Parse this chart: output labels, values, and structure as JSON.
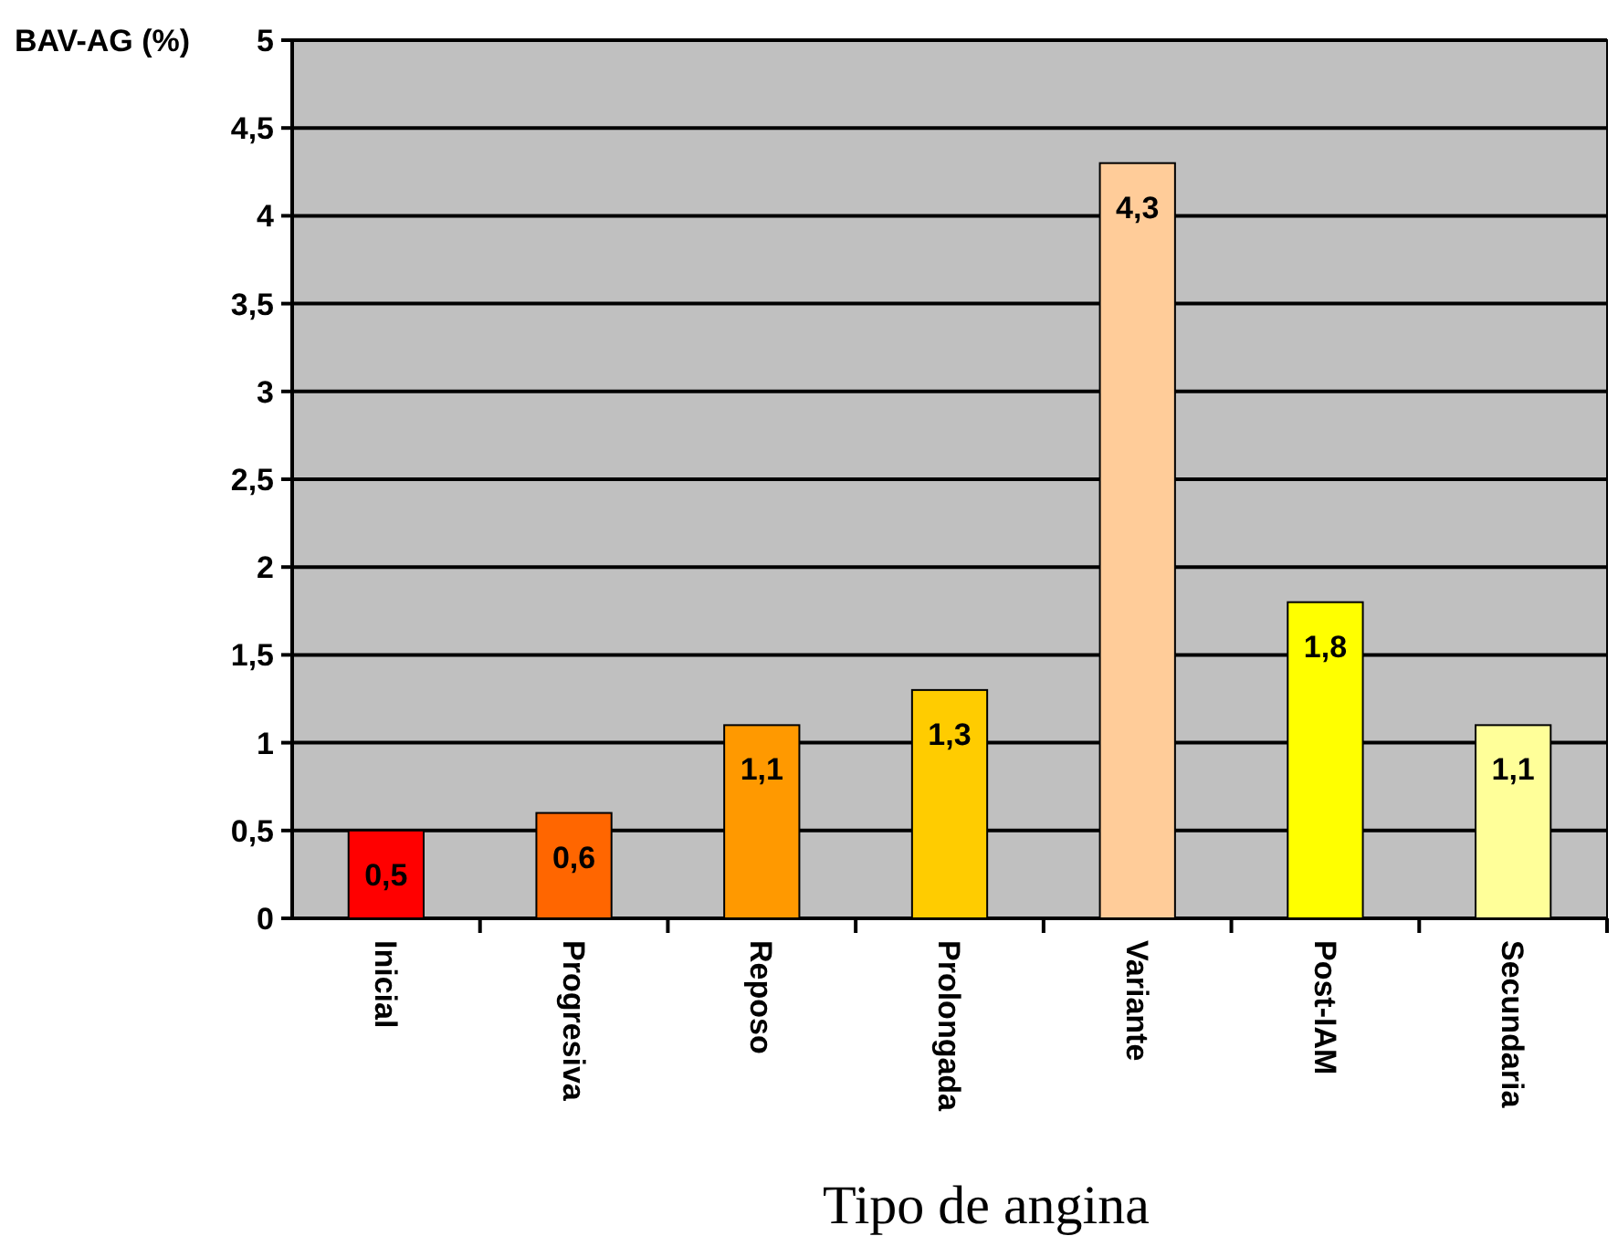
{
  "chart_data": {
    "type": "bar",
    "xlabel": "Tipo de angina",
    "ylabel": "BAV-AG (%)",
    "categories": [
      "Inicial",
      "Progresiva",
      "Reposo",
      "Prolongada",
      "Variante",
      "Post-IAM",
      "Secundaria"
    ],
    "values": [
      0.5,
      0.6,
      1.1,
      1.3,
      4.3,
      1.8,
      1.1
    ],
    "colors": [
      "#ff0000",
      "#ff6600",
      "#ff9900",
      "#ffcc00",
      "#ffcc99",
      "#ffff00",
      "#ffff99"
    ],
    "value_labels": [
      "0,5",
      "0,6",
      "1,1",
      "1,3",
      "4,3",
      "1,8",
      "1,1"
    ],
    "ylim": [
      0,
      5
    ],
    "yticks": [
      0,
      {
        "value": 0.5,
        "label": "0,5"
      },
      1,
      {
        "value": 1.5,
        "label": "1,5"
      },
      2,
      {
        "value": 2.5,
        "label": "2,5"
      },
      3,
      {
        "value": 3.5,
        "label": "3,5"
      },
      4,
      {
        "value": 4.5,
        "label": "4,5"
      },
      5
    ],
    "grid": "y"
  }
}
